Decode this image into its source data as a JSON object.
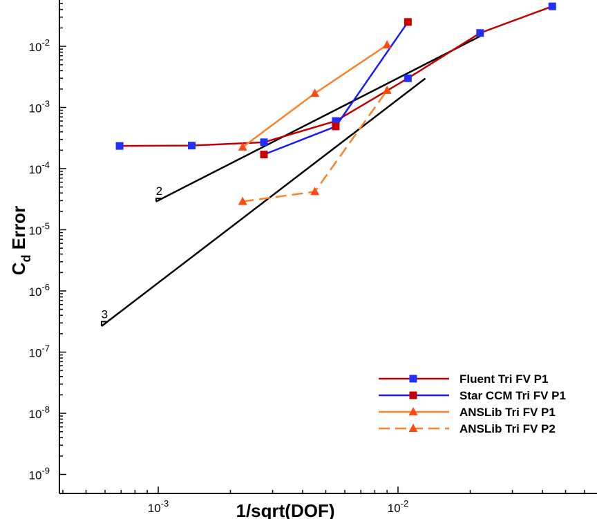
{
  "chart_data": {
    "type": "line",
    "title": "",
    "xlabel": "1/sqrt(DOF)",
    "ylabel": {
      "main": "C",
      "subscript": "d",
      "suffix": " Error"
    },
    "x_scale": "log",
    "y_scale": "log",
    "xlim": [
      0.0004,
      0.045
    ],
    "ylim": [
      1e-09,
      0.05
    ],
    "x_ticks": [
      {
        "value": 0.001,
        "base": "10",
        "exp": "-3"
      },
      {
        "value": 0.01,
        "base": "10",
        "exp": "-2"
      }
    ],
    "y_ticks": [
      {
        "value": 1e-09,
        "base": "10",
        "exp": "-9"
      },
      {
        "value": 1e-08,
        "base": "10",
        "exp": "-8"
      },
      {
        "value": 1e-07,
        "base": "10",
        "exp": "-7"
      },
      {
        "value": 1e-06,
        "base": "10",
        "exp": "-6"
      },
      {
        "value": 1e-05,
        "base": "10",
        "exp": "-5"
      },
      {
        "value": 0.0001,
        "base": "10",
        "exp": "-4"
      },
      {
        "value": 0.001,
        "base": "10",
        "exp": "-3"
      },
      {
        "value": 0.01,
        "base": "10",
        "exp": "-2"
      }
    ],
    "legend_position": "bottom-right",
    "grid": false,
    "series": [
      {
        "name": "Fluent Tri FV P1",
        "line_color": "#c00000",
        "marker_color": "#2030ff",
        "marker": "square",
        "dash": "solid",
        "x": [
          0.00069,
          0.00138,
          0.00276,
          0.0055,
          0.011,
          0.022,
          0.044
        ],
        "y": [
          0.000235,
          0.000238,
          0.00027,
          0.0006,
          0.003,
          0.0165,
          0.045
        ]
      },
      {
        "name": "Star CCM Tri FV P1",
        "line_color": "#1a1aff",
        "marker_color": "#c80000",
        "marker": "square",
        "dash": "solid",
        "x": [
          0.00276,
          0.0055,
          0.011
        ],
        "y": [
          0.00017,
          0.00049,
          0.025
        ]
      },
      {
        "name": "ANSLib Tri FV P1",
        "line_color": "#ff7f27",
        "marker_color": "#ff4a14",
        "marker": "triangle",
        "dash": "solid",
        "x": [
          0.00225,
          0.0045,
          0.009
        ],
        "y": [
          0.000225,
          0.0017,
          0.0105
        ]
      },
      {
        "name": "ANSLib Tri FV P2",
        "line_color": "#ff7f27",
        "marker_color": "#ff4a14",
        "marker": "triangle",
        "dash": "dashed",
        "x": [
          0.00225,
          0.0045,
          0.009
        ],
        "y": [
          2.9e-05,
          4.2e-05,
          0.0019
        ]
      }
    ],
    "slope_guides": [
      {
        "label": "2",
        "order": 2,
        "x_start": 0.00098,
        "y_start": 2.9e-05,
        "x_end": 0.0225
      },
      {
        "label": "3",
        "order": 3,
        "x_start": 0.00058,
        "y_start": 2.65e-07,
        "x_end": 0.013
      }
    ]
  }
}
